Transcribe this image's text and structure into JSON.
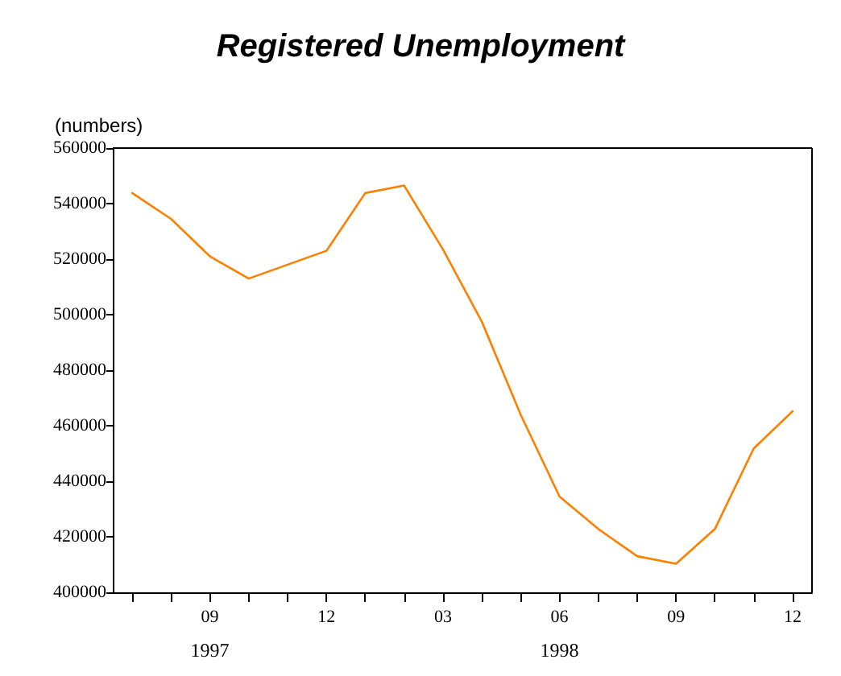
{
  "chart_data": {
    "type": "line",
    "title": "Registered Unemployment",
    "ylabel": "(numbers)",
    "categories": [
      null,
      null,
      "09",
      null,
      null,
      "12",
      null,
      null,
      "03",
      null,
      null,
      "06",
      null,
      null,
      "09",
      null,
      null,
      "12"
    ],
    "series": [
      {
        "color": "#ff8000",
        "values": [
          543800,
          534500,
          521000,
          513000,
          518000,
          523000,
          543800,
          546500,
          523500,
          497500,
          464000,
          434500,
          422800,
          413000,
          410300,
          422800,
          451800,
          465200
        ]
      }
    ],
    "annotations": [
      "1997",
      "1998"
    ],
    "ylim": [
      400000,
      560000
    ],
    "yticks": [
      400000,
      420000,
      440000,
      460000,
      480000,
      500000,
      520000,
      540000,
      560000
    ],
    "grid": false,
    "marker": "none",
    "line_style": "solid"
  }
}
